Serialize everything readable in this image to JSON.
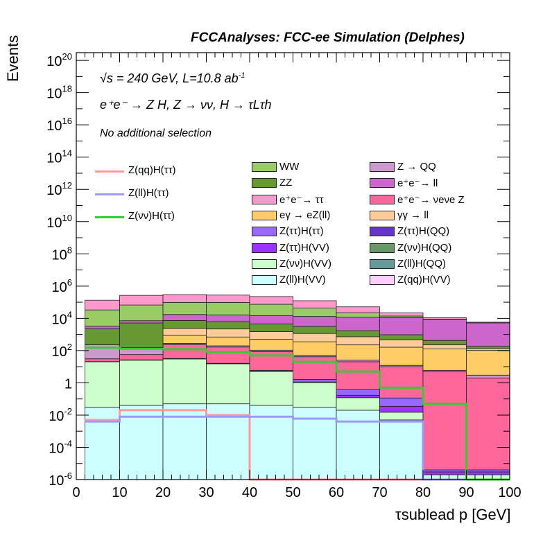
{
  "header": {
    "title": "FCCAnalyses: FCC-ee Simulation (Delphes)",
    "energy_line": "√s = 240 GeV, L=10.8 ab",
    "energy_sup": "-1",
    "process_line": "e⁺e⁻ → Z H, Z → νν, H → τLτh",
    "selection_line": "No additional selection"
  },
  "chart_data": {
    "type": "area",
    "title": "FCCAnalyses: FCC-ee Simulation (Delphes)",
    "xlabel": "τsublead p [GeV]",
    "ylabel": "Events",
    "xlim": [
      0,
      100
    ],
    "ylim": [
      1e-06,
      3e+20
    ],
    "log_y": true,
    "x_ticks": [
      "0",
      "10",
      "20",
      "30",
      "40",
      "50",
      "60",
      "70",
      "80",
      "90",
      "100"
    ],
    "y_ticks": [
      "10^-6",
      "10^-4",
      "10^-2",
      "1",
      "10^2",
      "10^4",
      "10^6",
      "10^8",
      "10^10",
      "10^12",
      "10^14",
      "10^16",
      "10^18",
      "10^20"
    ],
    "bin_edges": [
      2,
      10,
      20,
      30,
      40,
      50,
      60,
      70,
      80,
      90,
      100
    ],
    "stack_order_bottom_to_top": [
      "Z(ll)H(VV)",
      "Z(νν)H(VV)",
      "Z(ττ)H(VV)",
      "Z(ττ)H(ττ)",
      "e⁺e⁻→ ν_eν_e Z",
      "Z → QQ",
      "eγ → eZ(ll)",
      "γγ → ll",
      "ZZ",
      "e⁺e⁻→ ll",
      "WW",
      "e⁺e⁻→ ττ"
    ],
    "stacked_series": [
      {
        "name": "Z(ll)H(VV)",
        "color": "#ccffff",
        "values": [
          0.03,
          0.04,
          0.05,
          0.05,
          0.04,
          0.03,
          0.02,
          0.005,
          1e-06,
          1e-06
        ]
      },
      {
        "name": "Z(νν)H(VV)",
        "color": "#ccffcc",
        "values": [
          20,
          25,
          30,
          15,
          5,
          1,
          0.1,
          0.01,
          1e-06,
          1e-06
        ]
      },
      {
        "name": "Z(ττ)H(VV)",
        "color": "#9933ff",
        "values": [
          0.3,
          0.5,
          0.5,
          0.3,
          0.2,
          0.1,
          0.05,
          0.02,
          1e-06,
          1e-06
        ]
      },
      {
        "name": "Z(ττ)H(ττ)",
        "color": "#9966ff",
        "values": [
          0.5,
          1,
          1.5,
          1,
          0.7,
          0.5,
          0.2,
          0.08,
          1e-06,
          1e-06
        ]
      },
      {
        "name": "e⁺e⁻→ ν_eν_e Z",
        "color": "#ff6699",
        "values": [
          10,
          30,
          200,
          150,
          80,
          40,
          20,
          10,
          5,
          2
        ]
      },
      {
        "name": "Z → QQ",
        "color": "#cc99cc",
        "values": [
          200,
          100,
          50,
          30,
          20,
          10,
          5,
          2,
          1,
          1
        ]
      },
      {
        "name": "eγ → eZ(ll)",
        "color": "#ffcc66",
        "values": [
          0,
          0,
          600,
          500,
          400,
          300,
          200,
          150,
          120,
          100
        ]
      },
      {
        "name": "γγ → ll",
        "color": "#ffcc99",
        "values": [
          0,
          0,
          1500,
          1500,
          1000,
          800,
          500,
          300,
          100,
          30
        ]
      },
      {
        "name": "ZZ",
        "color": "#669933",
        "values": [
          2000,
          5000,
          5000,
          4000,
          3000,
          2000,
          1000,
          500,
          200,
          50
        ]
      },
      {
        "name": "e⁺e⁻→ ll",
        "color": "#cc66cc",
        "values": [
          1000,
          2000,
          10000,
          10000,
          10000,
          10000,
          10000,
          10000,
          8000,
          5000
        ]
      },
      {
        "name": "WW",
        "color": "#99cc66",
        "values": [
          30000,
          60000,
          80000,
          80000,
          60000,
          30000,
          10000,
          3000,
          500,
          100
        ]
      },
      {
        "name": "e⁺e⁻→ ττ",
        "color": "#ff99cc",
        "values": [
          100000,
          200000,
          200000,
          180000,
          150000,
          80000,
          30000,
          8000,
          2000,
          500
        ]
      }
    ],
    "line_series": [
      {
        "name": "Z(qq)H(ττ)",
        "color": "#ff9999",
        "values": [
          0.005,
          0.02,
          0.02,
          0.01,
          1e-06,
          1e-06,
          1e-06,
          1e-06,
          1e-06,
          1e-06
        ]
      },
      {
        "name": "Z(ll)H(ττ)",
        "color": "#9999ff",
        "values": [
          0.004,
          0.008,
          0.008,
          0.008,
          0.008,
          0.006,
          0.004,
          0.004,
          1e-06,
          1e-06
        ]
      },
      {
        "name": "Z(νν)H(ττ)",
        "color": "#33cc33",
        "values": [
          150,
          130,
          120,
          80,
          50,
          20,
          5,
          0.5,
          0.05,
          1e-06
        ]
      }
    ]
  },
  "legend": {
    "lines": [
      {
        "label": "Z(qq)H(ττ)",
        "color": "#ff9999"
      },
      {
        "label": "Z(ll)H(ττ)",
        "color": "#9999ff"
      },
      {
        "label": "Z(νν)H(ττ)",
        "color": "#33cc33"
      }
    ],
    "col1": [
      {
        "label": "WW",
        "color": "#99cc66"
      },
      {
        "label": "ZZ",
        "color": "#669933"
      },
      {
        "label": "e⁺e⁻→ ττ",
        "color": "#ff99cc"
      },
      {
        "label": "eγ → eZ(ll)",
        "color": "#ffcc66"
      },
      {
        "label": "Z(ττ)H(ττ)",
        "color": "#9966ff"
      },
      {
        "label": "Z(ττ)H(VV)",
        "color": "#9933ff"
      },
      {
        "label": "Z(νν)H(VV)",
        "color": "#ccffcc"
      },
      {
        "label": "Z(ll)H(VV)",
        "color": "#ccffff"
      }
    ],
    "col2": [
      {
        "label": "Z → QQ",
        "color": "#cc99cc"
      },
      {
        "label": "e⁺e⁻→ ll",
        "color": "#cc66cc"
      },
      {
        "label": "e⁺e⁻→ νeνe Z",
        "color": "#ff6699"
      },
      {
        "label": "γγ → ll",
        "color": "#ffcc99"
      },
      {
        "label": "Z(ττ)H(QQ)",
        "color": "#6633cc"
      },
      {
        "label": "Z(νν)H(QQ)",
        "color": "#669966"
      },
      {
        "label": "Z(ll)H(QQ)",
        "color": "#669999"
      },
      {
        "label": "Z(qq)H(VV)",
        "color": "#ffccff"
      }
    ]
  }
}
